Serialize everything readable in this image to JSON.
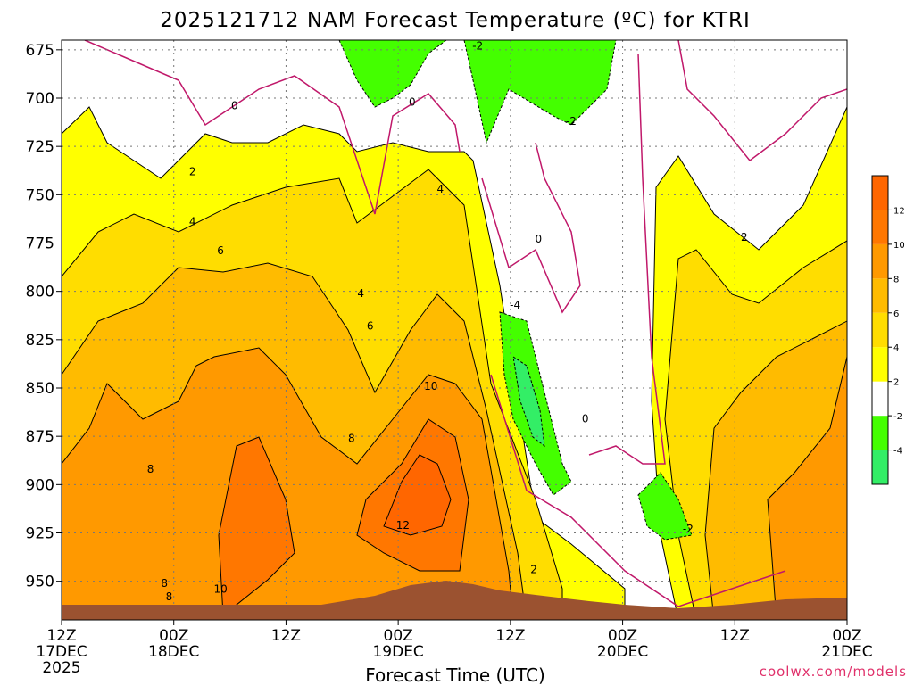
{
  "chart_data": {
    "type": "heatmap",
    "title": "2025121712 NAM Forecast Temperature (ºC) for KTRI",
    "xlabel": "Forecast Time (UTC)",
    "ylabel": "",
    "credit": "coolwx.com/models",
    "x_ticks": [
      {
        "hour": 0,
        "label1": "12Z",
        "label2": "17DEC",
        "label3": "2025"
      },
      {
        "hour": 12,
        "label1": "00Z",
        "label2": "18DEC",
        "label3": ""
      },
      {
        "hour": 24,
        "label1": "12Z",
        "label2": "",
        "label3": ""
      },
      {
        "hour": 36,
        "label1": "00Z",
        "label2": "19DEC",
        "label3": ""
      },
      {
        "hour": 48,
        "label1": "12Z",
        "label2": "",
        "label3": ""
      },
      {
        "hour": 60,
        "label1": "00Z",
        "label2": "20DEC",
        "label3": ""
      },
      {
        "hour": 72,
        "label1": "12Z",
        "label2": "",
        "label3": ""
      },
      {
        "hour": 84,
        "label1": "00Z",
        "label2": "21DEC",
        "label3": ""
      }
    ],
    "x_range_hours": [
      0,
      84
    ],
    "y_ticks": [
      675,
      700,
      725,
      750,
      775,
      800,
      825,
      850,
      875,
      900,
      925,
      950
    ],
    "y_range_hPa": [
      670,
      970
    ],
    "colorbar": {
      "levels": [
        -6,
        -4,
        -2,
        2,
        4,
        6,
        8,
        10,
        12,
        14
      ],
      "labels": [
        "-4",
        "-2",
        "2",
        "4",
        "6",
        "8",
        "10",
        "12"
      ],
      "colors": [
        "#33ee66",
        "#44ff00",
        "#ffffff",
        "#ffff00",
        "#ffdd00",
        "#ffbb00",
        "#ff9900",
        "#ff7700",
        "#ff6600"
      ]
    },
    "contour_labels": [
      {
        "text": "0",
        "hour": 18.5,
        "p": 704
      },
      {
        "text": "0",
        "hour": 37.5,
        "p": 702
      },
      {
        "text": "-2",
        "hour": 44.5,
        "p": 673
      },
      {
        "text": "-2",
        "hour": 54.5,
        "p": 712
      },
      {
        "text": "2",
        "hour": 14,
        "p": 738
      },
      {
        "text": "4",
        "hour": 14,
        "p": 764
      },
      {
        "text": "4",
        "hour": 40.5,
        "p": 747
      },
      {
        "text": "6",
        "hour": 17,
        "p": 779
      },
      {
        "text": "0",
        "hour": 51,
        "p": 773
      },
      {
        "text": "2",
        "hour": 73,
        "p": 772
      },
      {
        "text": "4",
        "hour": 32,
        "p": 801
      },
      {
        "text": "-4",
        "hour": 48.5,
        "p": 807
      },
      {
        "text": "6",
        "hour": 33,
        "p": 818
      },
      {
        "text": "10",
        "hour": 39.5,
        "p": 849
      },
      {
        "text": "0",
        "hour": 56,
        "p": 866
      },
      {
        "text": "8",
        "hour": 31,
        "p": 876
      },
      {
        "text": "8",
        "hour": 9.5,
        "p": 892
      },
      {
        "text": "12",
        "hour": 36.5,
        "p": 921
      },
      {
        "text": "-2",
        "hour": 67,
        "p": 923
      },
      {
        "text": "2",
        "hour": 50.5,
        "p": 944
      },
      {
        "text": "8",
        "hour": 11,
        "p": 951
      },
      {
        "text": "8",
        "hour": 11.5,
        "p": 958
      },
      {
        "text": "10",
        "hour": 17,
        "p": 954
      }
    ]
  }
}
